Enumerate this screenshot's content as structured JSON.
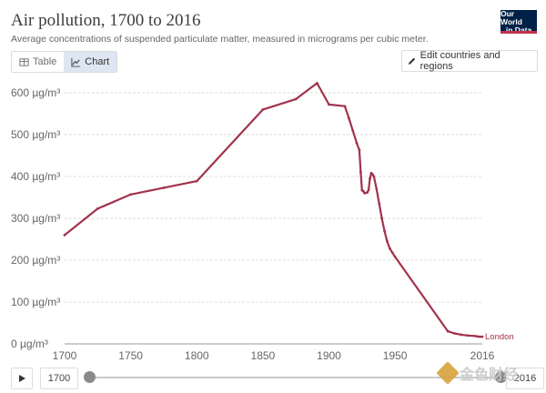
{
  "header": {
    "title": "Air pollution, 1700 to 2016",
    "subtitle": "Average concentrations of suspended particulate matter, measured in micrograms per cubic meter.",
    "logo_line1": "Our World",
    "logo_line2": "in Data"
  },
  "tabs": [
    {
      "label": "Table",
      "icon": "table-icon"
    },
    {
      "label": "Chart",
      "icon": "line-chart-icon"
    }
  ],
  "edit_button_label": "Edit countries and regions",
  "colors": {
    "series": "#a2334c",
    "logo_bg": "#002147",
    "logo_accent": "#c4314b"
  },
  "timeline": {
    "start_year": "1700",
    "end_year": "2016"
  },
  "watermark": {
    "text": "金色财经"
  },
  "chart_data": {
    "type": "line",
    "title": "Air pollution, 1700 to 2016",
    "subtitle": "Average concentrations of suspended particulate matter, measured in micrograms per cubic meter.",
    "xlabel": "",
    "ylabel": "",
    "xlim": [
      1700,
      2016
    ],
    "ylim": [
      0,
      600
    ],
    "yticks": [
      0,
      100,
      200,
      300,
      400,
      500,
      600
    ],
    "ytick_labels": [
      "0 µg/m³",
      "100 µg/m³",
      "200 µg/m³",
      "300 µg/m³",
      "400 µg/m³",
      "500 µg/m³",
      "600 µg/m³"
    ],
    "xticks": [
      1700,
      1750,
      1800,
      1850,
      1900,
      1950,
      2016
    ],
    "grid": "horizontal",
    "series": [
      {
        "name": "London",
        "x": [
          1700,
          1725,
          1750,
          1775,
          1800,
          1850,
          1875,
          1891,
          1900,
          1912,
          1915,
          1918,
          1921,
          1923,
          1924,
          1925,
          1926,
          1927,
          1929,
          1930,
          1931,
          1932,
          1933,
          1934,
          1936,
          1938,
          1940,
          1942,
          1944,
          1946,
          1948,
          1950,
          1990,
          1995,
          2000,
          2005,
          2010,
          2012,
          2014,
          2016
        ],
        "values": [
          260,
          323,
          357,
          373,
          389,
          560,
          585,
          623,
          572,
          568,
          540,
          510,
          480,
          463,
          410,
          367,
          365,
          360,
          362,
          368,
          395,
          408,
          405,
          400,
          370,
          335,
          300,
          270,
          245,
          228,
          218,
          208,
          30,
          25,
          22,
          20,
          19,
          18,
          17,
          17
        ]
      }
    ]
  }
}
